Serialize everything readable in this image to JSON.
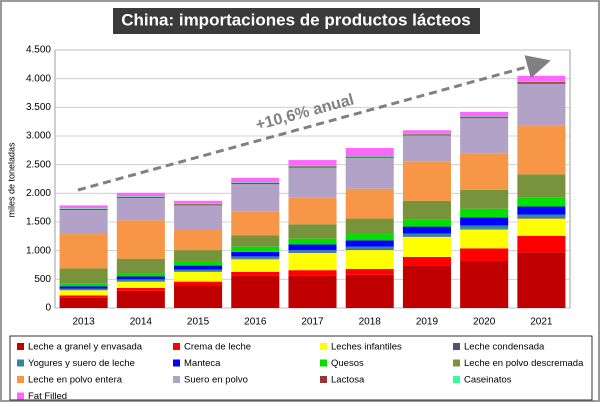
{
  "chart_data": {
    "type": "bar",
    "stacked": true,
    "title": "China: importaciones de productos lácteos",
    "ylabel": "miles de toneladas",
    "annotation": "+10,6% anual",
    "categories": [
      "2013",
      "2014",
      "2015",
      "2016",
      "2017",
      "2018",
      "2019",
      "2020",
      "2021"
    ],
    "ylim": [
      0,
      4500
    ],
    "yticks": [
      0,
      {
        "value": 500,
        "label": "500"
      },
      {
        "value": 1000,
        "label": "1.000"
      },
      {
        "value": 1500,
        "label": "1.500"
      },
      {
        "value": 2000,
        "label": "2.000"
      },
      {
        "value": 2500,
        "label": "2.500"
      },
      {
        "value": 3000,
        "label": "3.000"
      },
      {
        "value": 3500,
        "label": "3.500"
      },
      {
        "value": 4000,
        "label": "4.000"
      },
      {
        "value": 4500,
        "label": "4.500"
      }
    ],
    "grid": true,
    "series": [
      {
        "name": "Leche a granel y envasada",
        "color": "#c00000",
        "values": [
          180,
          300,
          400,
          560,
          570,
          580,
          740,
          820,
          970
        ]
      },
      {
        "name": "Crema de leche",
        "color": "#ff0000",
        "values": [
          40,
          50,
          60,
          70,
          90,
          100,
          150,
          220,
          290
        ]
      },
      {
        "name": "Leches infantiles",
        "color": "#ffff00",
        "values": [
          90,
          110,
          170,
          220,
          300,
          330,
          350,
          330,
          300
        ]
      },
      {
        "name": "Leche condensada",
        "color": "#60497a",
        "values": [
          10,
          10,
          10,
          10,
          10,
          10,
          10,
          10,
          10
        ]
      },
      {
        "name": "Yogures y suero de leche",
        "color": "#31859c",
        "values": [
          20,
          30,
          30,
          40,
          40,
          50,
          50,
          60,
          60
        ]
      },
      {
        "name": "Manteca",
        "color": "#0000ff",
        "values": [
          40,
          50,
          70,
          80,
          100,
          110,
          120,
          140,
          140
        ]
      },
      {
        "name": "Quesos",
        "color": "#00e000",
        "values": [
          50,
          60,
          70,
          90,
          100,
          110,
          130,
          150,
          160
        ]
      },
      {
        "name": "Leche en polvo descremada",
        "color": "#77933c",
        "values": [
          260,
          250,
          200,
          200,
          250,
          270,
          320,
          330,
          400
        ]
      },
      {
        "name": "Leche en polvo entera",
        "color": "#f79646",
        "values": [
          600,
          670,
          350,
          420,
          470,
          520,
          680,
          640,
          850
        ]
      },
      {
        "name": "Suero en polvo",
        "color": "#b3a2c7",
        "values": [
          420,
          390,
          430,
          470,
          520,
          540,
          460,
          610,
          730
        ]
      },
      {
        "name": "Lactosa",
        "color": "#953735",
        "values": [
          20,
          20,
          20,
          20,
          20,
          20,
          20,
          20,
          30
        ]
      },
      {
        "name": "Caseinatos",
        "color": "#33ff99",
        "values": [
          10,
          10,
          10,
          10,
          10,
          10,
          10,
          10,
          10
        ]
      },
      {
        "name": "Fat Filled",
        "color": "#ff66ff",
        "values": [
          50,
          60,
          50,
          80,
          100,
          140,
          60,
          80,
          100
        ]
      }
    ]
  }
}
